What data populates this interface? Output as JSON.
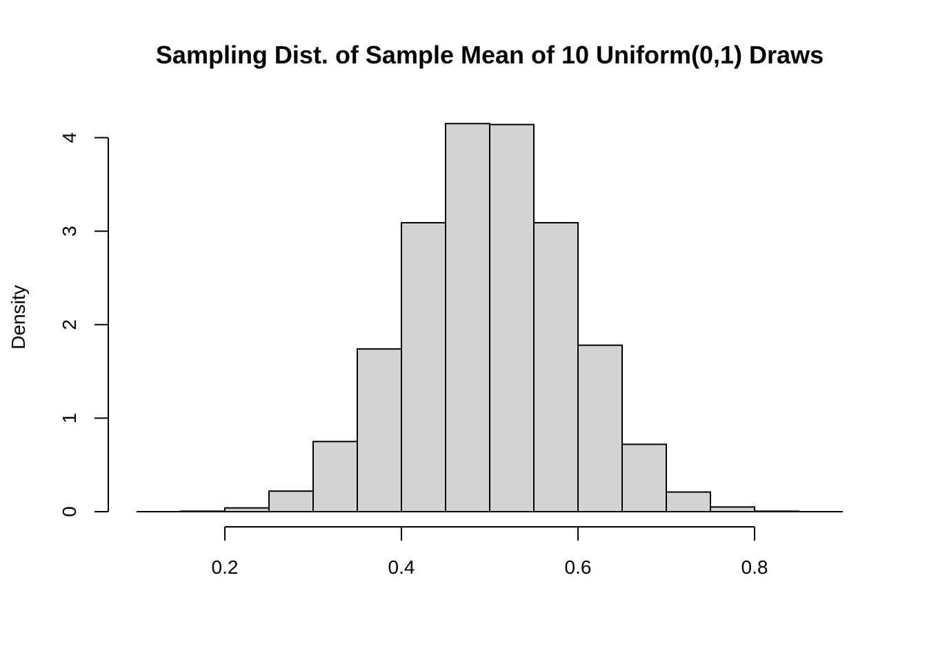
{
  "chart_data": {
    "type": "bar",
    "title": "Sampling Dist. of Sample Mean of 10 Uniform(0,1) Draws",
    "xlabel": "",
    "ylabel": "Density",
    "bins": [
      {
        "start": 0.15,
        "end": 0.2,
        "density": 0.005
      },
      {
        "start": 0.2,
        "end": 0.25,
        "density": 0.04
      },
      {
        "start": 0.25,
        "end": 0.3,
        "density": 0.22
      },
      {
        "start": 0.3,
        "end": 0.35,
        "density": 0.75
      },
      {
        "start": 0.35,
        "end": 0.4,
        "density": 1.74
      },
      {
        "start": 0.4,
        "end": 0.45,
        "density": 3.09
      },
      {
        "start": 0.45,
        "end": 0.5,
        "density": 4.15
      },
      {
        "start": 0.5,
        "end": 0.55,
        "density": 4.14
      },
      {
        "start": 0.55,
        "end": 0.6,
        "density": 3.09
      },
      {
        "start": 0.6,
        "end": 0.65,
        "density": 1.78
      },
      {
        "start": 0.65,
        "end": 0.7,
        "density": 0.72
      },
      {
        "start": 0.7,
        "end": 0.75,
        "density": 0.21
      },
      {
        "start": 0.75,
        "end": 0.8,
        "density": 0.05
      },
      {
        "start": 0.8,
        "end": 0.85,
        "density": 0.005
      }
    ],
    "xlim": [
      0.1,
      0.9
    ],
    "ylim": [
      0,
      4.2
    ],
    "x_ticks": [
      0.2,
      0.4,
      0.6,
      0.8
    ],
    "x_tick_labels": [
      "0.2",
      "0.4",
      "0.6",
      "0.8"
    ],
    "y_ticks": [
      0,
      1,
      2,
      3,
      4
    ],
    "y_tick_labels": [
      "0",
      "1",
      "2",
      "3",
      "4"
    ],
    "baseline_range": [
      0.1,
      0.9
    ],
    "grid": false,
    "legend": "none",
    "colors": {
      "bar_fill": "#d3d3d3",
      "bar_stroke": "#000000",
      "axis": "#000000",
      "background": "#ffffff"
    }
  }
}
